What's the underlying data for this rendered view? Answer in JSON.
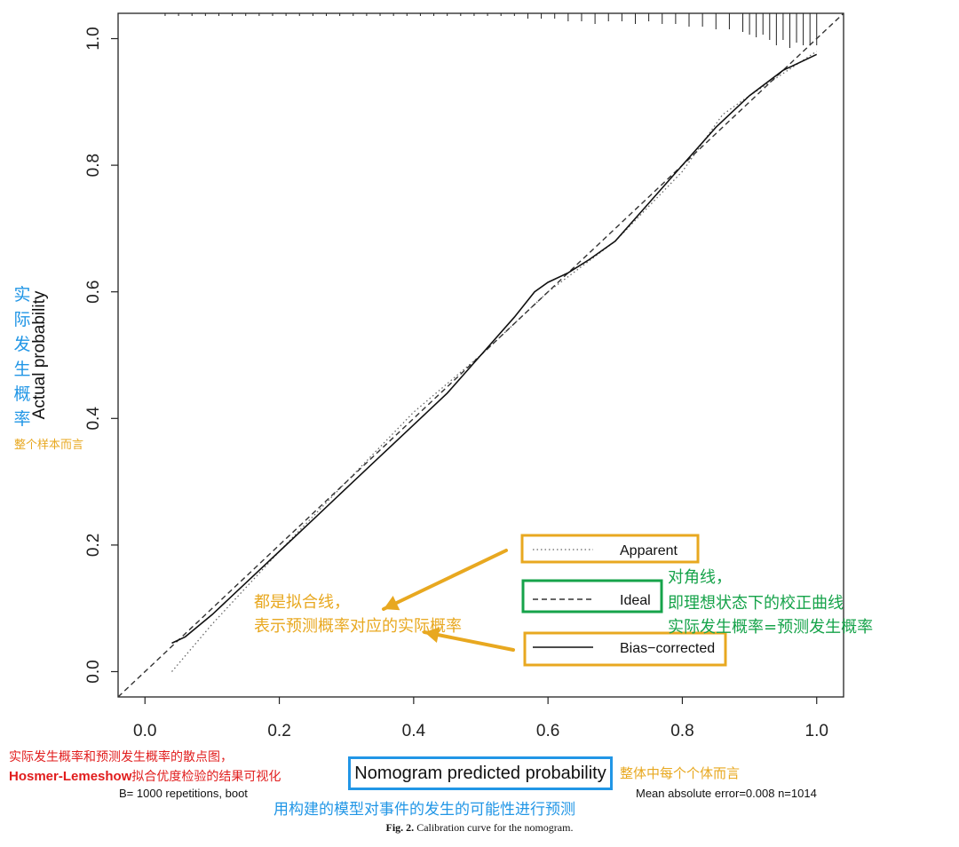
{
  "chart_data": {
    "type": "line",
    "xlabel": "Nomogram predicted probability",
    "ylabel": "Actual probability",
    "xlim": [
      -0.04,
      1.04
    ],
    "ylim": [
      -0.04,
      1.04
    ],
    "x_ticks": [
      "0.0",
      "0.2",
      "0.4",
      "0.6",
      "0.8",
      "1.0"
    ],
    "y_ticks": [
      "0.0",
      "0.2",
      "0.4",
      "0.6",
      "0.8",
      "1.0"
    ],
    "grid": false,
    "legend_position": "bottom-right",
    "series": [
      {
        "name": "Apparent",
        "style": "dotted",
        "x": [
          0.04,
          0.1,
          0.2,
          0.3,
          0.4,
          0.5,
          0.6,
          0.65,
          0.7,
          0.8,
          0.86,
          0.9,
          1.0
        ],
        "y": [
          0.0,
          0.075,
          0.19,
          0.3,
          0.41,
          0.5,
          0.6,
          0.64,
          0.68,
          0.79,
          0.88,
          0.91,
          0.98
        ]
      },
      {
        "name": "Ideal",
        "style": "dashed",
        "x": [
          -0.04,
          1.04
        ],
        "y": [
          -0.04,
          1.04
        ]
      },
      {
        "name": "Bias-corrected",
        "style": "solid",
        "x": [
          0.04,
          0.06,
          0.1,
          0.15,
          0.2,
          0.25,
          0.3,
          0.35,
          0.4,
          0.45,
          0.5,
          0.55,
          0.58,
          0.6,
          0.63,
          0.66,
          0.7,
          0.75,
          0.8,
          0.85,
          0.9,
          0.95,
          1.0
        ],
        "y": [
          0.045,
          0.055,
          0.09,
          0.14,
          0.19,
          0.24,
          0.29,
          0.34,
          0.39,
          0.44,
          0.5,
          0.56,
          0.6,
          0.615,
          0.63,
          0.65,
          0.68,
          0.74,
          0.8,
          0.86,
          0.91,
          0.95,
          0.975
        ]
      }
    ],
    "rug_top_x": [
      0.03,
      0.05,
      0.07,
      0.09,
      0.11,
      0.13,
      0.15,
      0.17,
      0.19,
      0.21,
      0.23,
      0.25,
      0.27,
      0.29,
      0.31,
      0.33,
      0.35,
      0.37,
      0.39,
      0.41,
      0.43,
      0.45,
      0.47,
      0.49,
      0.51,
      0.53,
      0.55,
      0.57,
      0.59,
      0.61,
      0.63,
      0.65,
      0.67,
      0.69,
      0.71,
      0.73,
      0.75,
      0.77,
      0.79,
      0.81,
      0.83,
      0.85,
      0.87,
      0.89,
      0.9,
      0.91,
      0.92,
      0.93,
      0.94,
      0.95,
      0.96,
      0.97,
      0.98,
      0.99,
      1.0
    ],
    "rug_top_counts": [
      1,
      1,
      1,
      1,
      1,
      1,
      1,
      1,
      1,
      1,
      1,
      1,
      1,
      1,
      1,
      1,
      1,
      1,
      1,
      1,
      1,
      1,
      1,
      1,
      1,
      1,
      1,
      2,
      2,
      2,
      3,
      3,
      4,
      3,
      3,
      4,
      3,
      4,
      4,
      5,
      5,
      6,
      6,
      7,
      8,
      9,
      8,
      10,
      12,
      10,
      13,
      11,
      12,
      12,
      12
    ]
  },
  "notes": {
    "reps": "B= 1000 repetitions, boot",
    "mae": "Mean absolute error=0.008 n=1014"
  },
  "legend": {
    "apparent": "Apparent",
    "ideal": "Ideal",
    "bias": "Bias−corrected"
  },
  "caption": {
    "label": "Fig. 2.",
    "text": " Calibration curve for the nomogram."
  },
  "annotations": {
    "ylabel_cn": "实际发生概率",
    "ylabel_sub": "整个样本而言",
    "fit_1": "都是拟合线，",
    "fit_2": "表示预测概率对应的实际概率",
    "diag_1": "对角线，",
    "diag_2": "即理想状态下的校正曲线",
    "diag_3": "实际发生概率=预测发生概率",
    "scatter_1": "实际发生概率和预测发生概率的散点图，",
    "hl_name": "Hosmer-Lemeshow",
    "hl_rest": "拟合优度检验的结果可视化",
    "xlabel_side": "整体中每个个体而言",
    "xlabel_sub": "用构建的模型对事件的发生的可能性进行预测"
  },
  "colors": {
    "blue": "#2196e6",
    "orange": "#e8a820",
    "green": "#16a34a",
    "red": "#e11d1d"
  }
}
